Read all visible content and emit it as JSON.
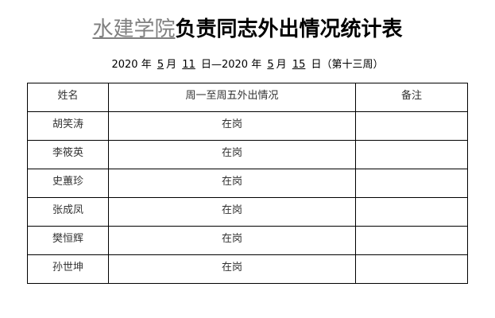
{
  "title": {
    "org": "水建学院",
    "rest": "负责同志外出情况统计表"
  },
  "subtitle": {
    "y1": "2020",
    "m1": "5",
    "d1": "11",
    "y2": "2020",
    "m2": "5",
    "d2": "15",
    "week": "（第十三周）",
    "year_char": "年",
    "month_char": "月",
    "day_char": "日",
    "dash": "—"
  },
  "table": {
    "headers": [
      "姓名",
      "周一至周五外出情况",
      "备注"
    ],
    "rows": [
      {
        "name": "胡笑涛",
        "status": "在岗",
        "note": ""
      },
      {
        "name": "李筱英",
        "status": "在岗",
        "note": ""
      },
      {
        "name": "史蕙珍",
        "status": "在岗",
        "note": ""
      },
      {
        "name": "张成凤",
        "status": "在岗",
        "note": ""
      },
      {
        "name": "樊恒辉",
        "status": "在岗",
        "note": ""
      },
      {
        "name": "孙世坤",
        "status": "在岗",
        "note": ""
      }
    ]
  }
}
